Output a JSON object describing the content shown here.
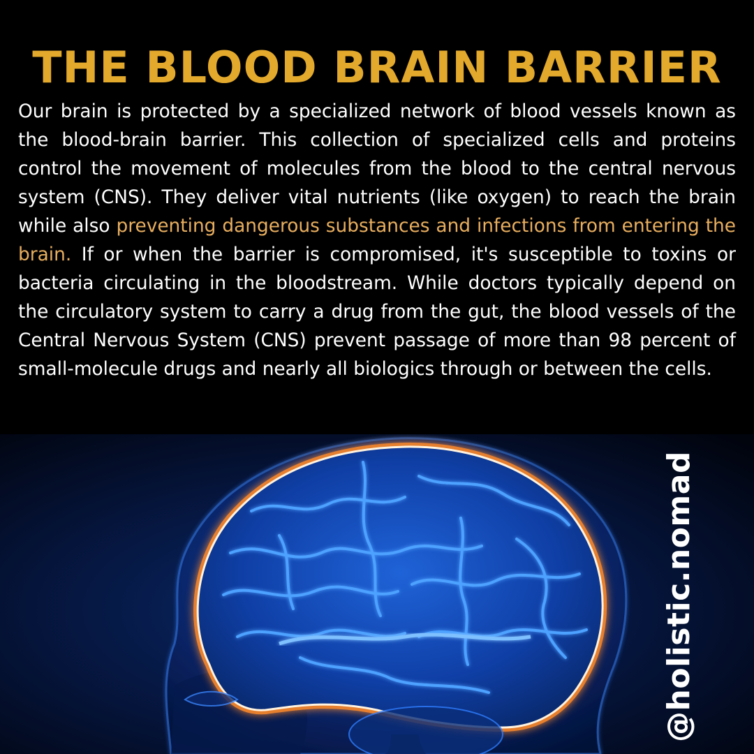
{
  "post": {
    "title": "THE BLOOD BRAIN BARRIER",
    "paragraph": {
      "intro": "Our brain is protected by a specialized network of blood vessels known as the blood-brain barrier. This collection of specialized cells and proteins control the movement of molecules from the blood to the central nervous system (CNS). They deliver vital nutrients (like oxygen) to reach the brain while also ",
      "highlight": "preventing dangerous substances and infections from entering the brain.",
      "rest": " If or when the barrier is compromised, it's susceptible to toxins or bacteria circulating in the bloodstream. While doctors typically depend on the circulatory system to carry a drug from the gut, the blood vessels of the Central Nervous System (CNS) prevent passage of more than 98 percent of small-molecule drugs and nearly all biologics through or between the cells."
    },
    "handle": "@holistic.nomad"
  },
  "colors": {
    "background": "#000000",
    "title": "#e3a92d",
    "body_text": "#ffffff",
    "highlight_text": "#e8ae5f",
    "brain_glow": "#2f7dff",
    "barrier_glow": "#ff8a2a"
  },
  "image": {
    "subject": "head-silhouette-with-glowing-blue-brain",
    "icon": "brain-illustration"
  }
}
